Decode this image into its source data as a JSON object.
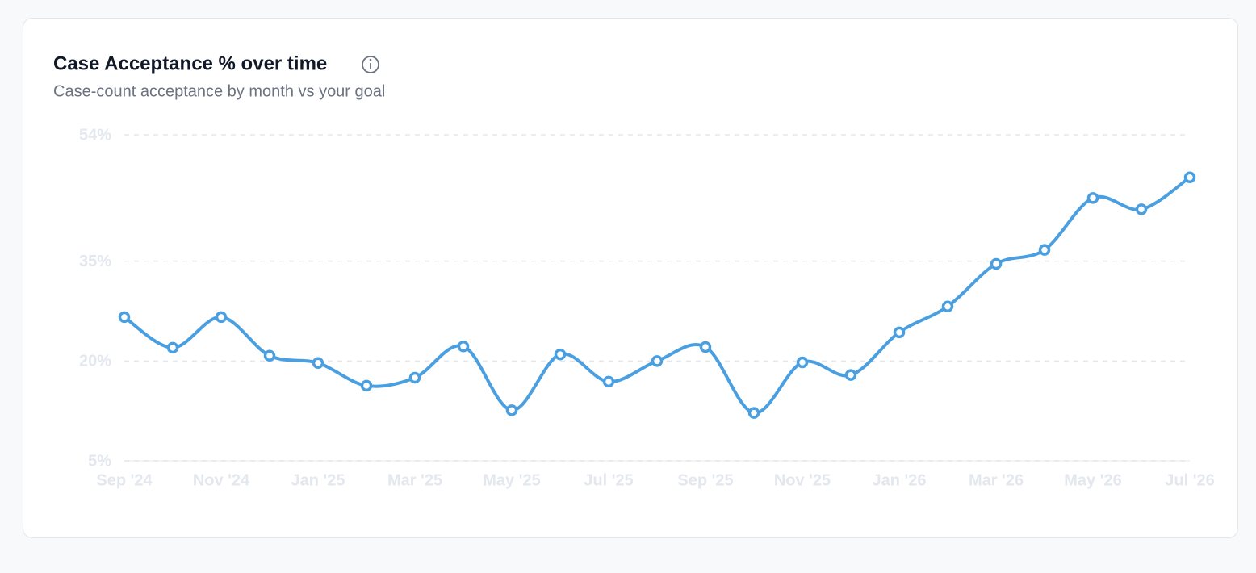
{
  "chart_data": {
    "type": "line",
    "title": "Case Acceptance % over time",
    "subtitle": "Case-count acceptance by month vs your goal",
    "categories": [
      "Sep '24",
      null,
      "Nov '24",
      null,
      "Jan '25",
      null,
      "Mar '25",
      null,
      "May '25",
      null,
      "Jul '25",
      null,
      "Sep '25",
      null,
      "Nov '25",
      null,
      "Jan '26",
      null,
      "Mar '26",
      null,
      "May '26",
      null,
      "Jul '26"
    ],
    "values": [
      26.6,
      22.0,
      26.6,
      20.8,
      19.7,
      16.3,
      17.5,
      22.2,
      12.6,
      21.0,
      16.9,
      20.0,
      22.1,
      12.2,
      19.8,
      17.9,
      24.3,
      28.2,
      34.6,
      36.7,
      44.5,
      42.8,
      47.6
    ],
    "color": "#4a9fe1",
    "ylim": [
      5,
      54
    ],
    "yticks": [
      {
        "value": 5,
        "label": "5%"
      },
      {
        "value": 20,
        "label": "20%"
      },
      {
        "value": 35,
        "label": "35%"
      },
      {
        "value": 54,
        "label": "54%"
      }
    ],
    "grid": true
  }
}
